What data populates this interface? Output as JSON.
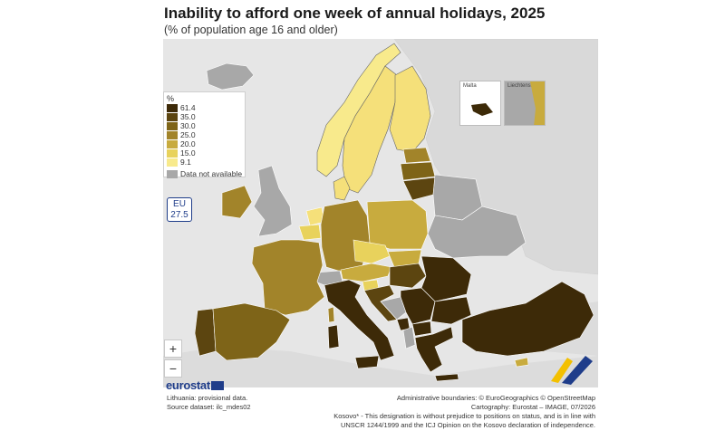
{
  "header": {
    "title": "Inability to afford one week of annual holidays, 2025",
    "subtitle": "(% of population age 16 and older)"
  },
  "legend": {
    "title": "%",
    "items": [
      {
        "label": "61.4",
        "color": "#3d2a08"
      },
      {
        "label": "35.0",
        "color": "#5c4510"
      },
      {
        "label": "30.0",
        "color": "#7e6418"
      },
      {
        "label": "25.0",
        "color": "#a2842a"
      },
      {
        "label": "20.0",
        "color": "#c8ab3e"
      },
      {
        "label": "15.0",
        "color": "#e8d25c"
      },
      {
        "label": "9.1",
        "color": "#f8ea8c"
      },
      {
        "label": "Data not available",
        "color": "#a8a8a8"
      }
    ]
  },
  "eu_badge": {
    "label": "EU",
    "value": "27.5"
  },
  "zoom": {
    "in_label": "+",
    "out_label": "−"
  },
  "insets": {
    "malta": "Malta",
    "liechtenstein": "Liechtenstein"
  },
  "branding": {
    "logo_text": "eurostat"
  },
  "notes": {
    "provisional": "Lithuania: provisional data.",
    "source": "Source dataset: ilc_mdes02"
  },
  "credits": {
    "boundaries": "Administrative boundaries: © EuroGeographics © OpenStreetMap",
    "cartography": "Cartography: Eurostat – IMAGE, 07/2026",
    "kosovo_1": "Kosovo* - This designation is without prejudice to positions on status, and is in line with",
    "kosovo_2": "UNSCR 1244/1999 and the ICJ Opinion on the Kosovo declaration of independence."
  },
  "colors": {
    "background_land": "#d9d9d9",
    "sea": "#e6e6e6",
    "no_data": "#a8a8a8",
    "eu_blue": "#1f3d8a"
  }
}
